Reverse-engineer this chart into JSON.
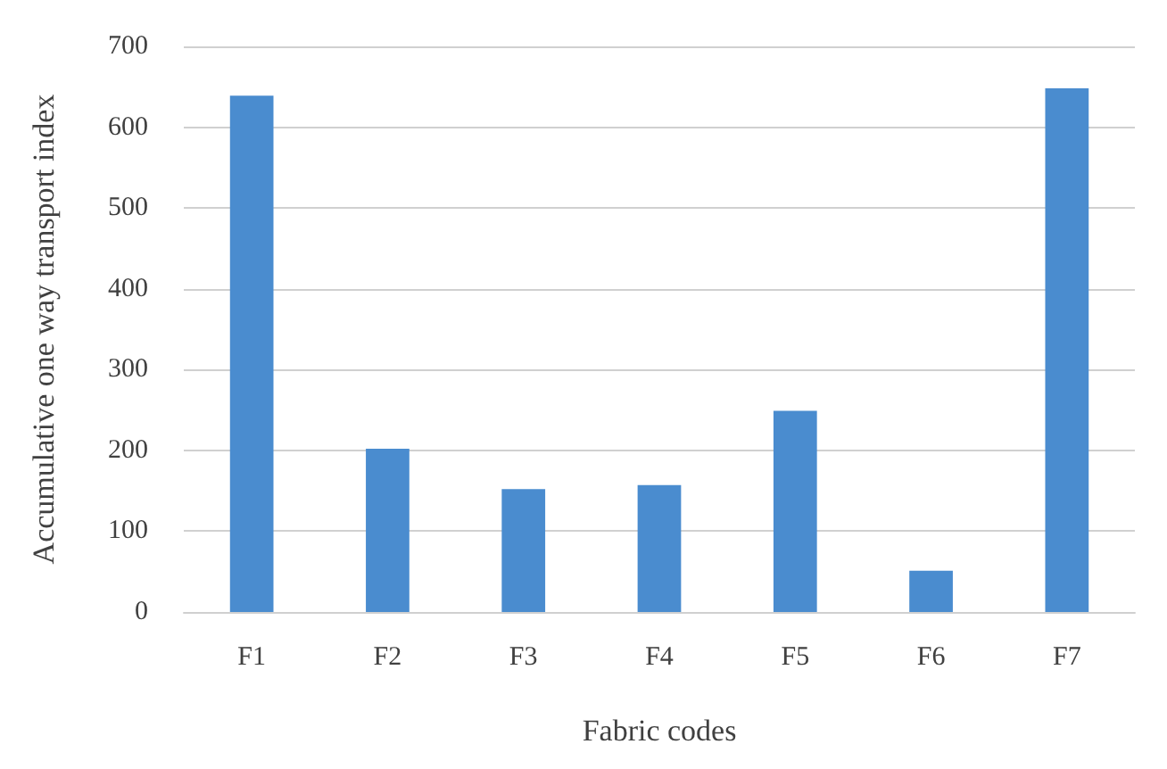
{
  "chart_data": {
    "type": "bar",
    "xlabel": "Fabric codes",
    "ylabel": "Accumulative one way transport index",
    "categories": [
      "F1",
      "F2",
      "F3",
      "F4",
      "F5",
      "F6",
      "F7"
    ],
    "values": [
      639,
      202,
      152,
      157,
      249,
      51,
      648
    ],
    "color": "#4a8ccf",
    "ylim": [
      0,
      700
    ],
    "yticks": [
      0,
      100,
      200,
      300,
      400,
      500,
      600,
      700
    ],
    "grid": "y"
  }
}
